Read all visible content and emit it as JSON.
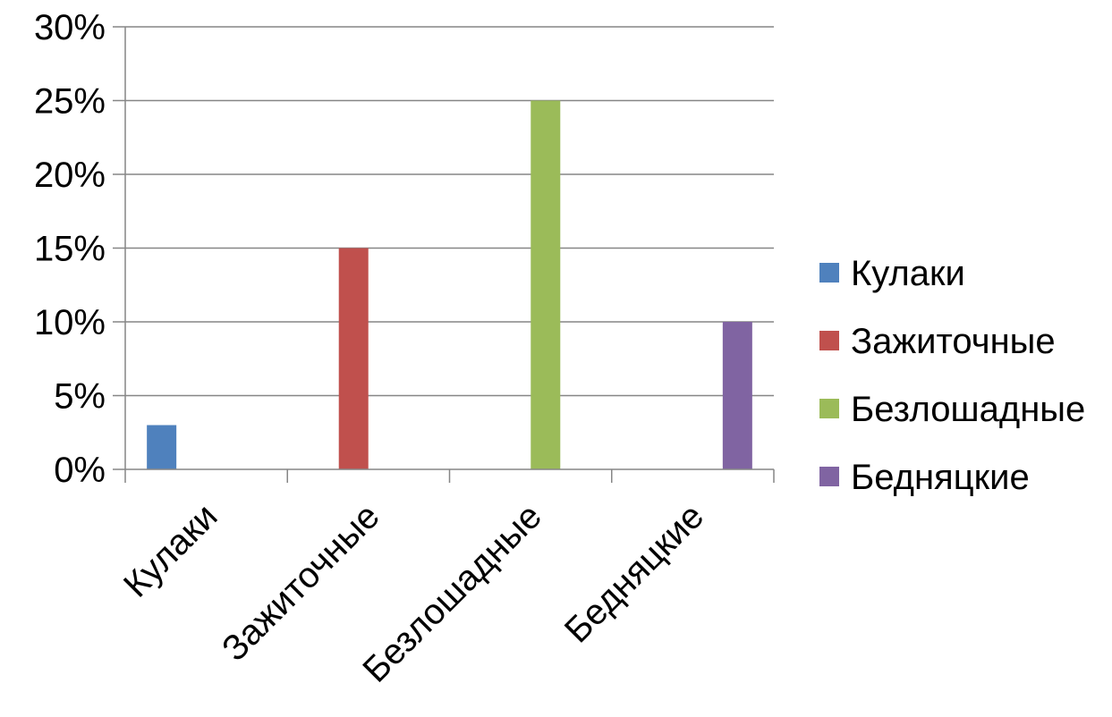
{
  "chart_data": {
    "type": "bar",
    "categories": [
      "Кулаки",
      "Зажиточные",
      "Безлошадные",
      "Бедняцкие"
    ],
    "series": [
      {
        "name": "Кулаки",
        "values": [
          3,
          null,
          null,
          null
        ],
        "color": "#4F81BD"
      },
      {
        "name": "Зажиточные",
        "values": [
          null,
          15,
          null,
          null
        ],
        "color": "#C0504D"
      },
      {
        "name": "Безлошадные",
        "values": [
          null,
          null,
          25,
          null
        ],
        "color": "#9BBB59"
      },
      {
        "name": "Бедняцкие",
        "values": [
          null,
          null,
          null,
          10
        ],
        "color": "#8064A2"
      }
    ],
    "y_ticks": [
      "0%",
      "5%",
      "10%",
      "15%",
      "20%",
      "25%",
      "30%"
    ],
    "ylim": [
      0,
      30
    ],
    "y_unit": "percent",
    "grid": true,
    "legend_position": "right",
    "title": "",
    "xlabel": "",
    "ylabel": ""
  }
}
